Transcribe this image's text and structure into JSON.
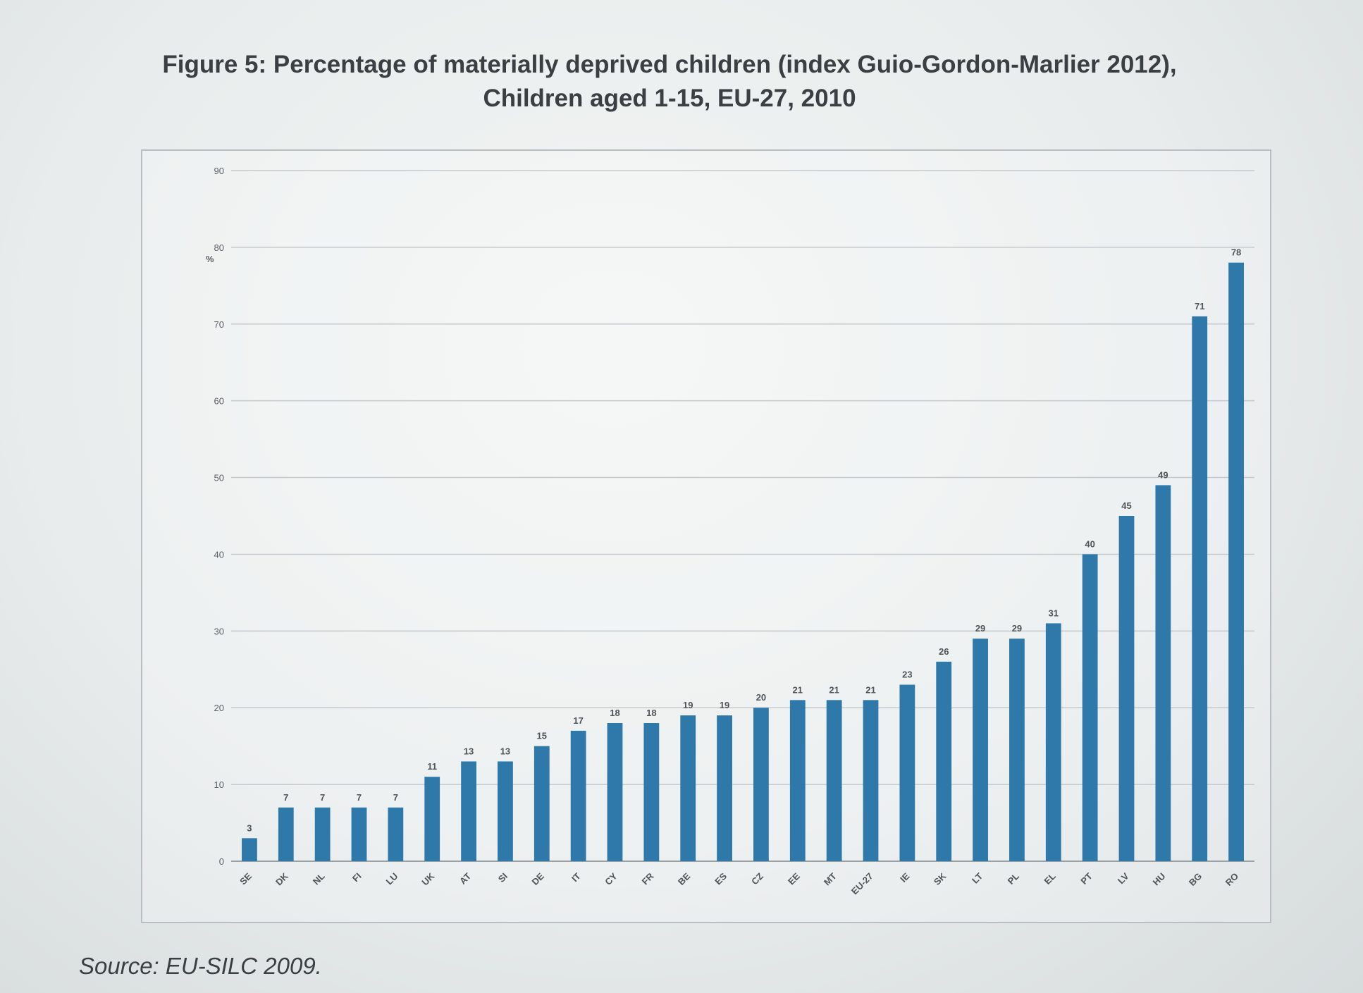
{
  "figure": {
    "title_line1": "Figure 5: Percentage of materially deprived children (index Guio-Gordon-Marlier 2012),",
    "title_line2": "Children aged 1-15, EU-27, 2010",
    "source": "Source: EU-SILC 2009."
  },
  "chart_data": {
    "type": "bar",
    "title": "Figure 5: Percentage of materially deprived children (index Guio-Gordon-Marlier 2012), Children aged 1-15, EU-27, 2010",
    "xlabel": "",
    "ylabel": "%",
    "ylim": [
      0,
      90
    ],
    "yticks": [
      0,
      10,
      20,
      30,
      40,
      50,
      60,
      70,
      80,
      90
    ],
    "grid": true,
    "bar_color": "#2e78aa",
    "categories": [
      "SE",
      "DK",
      "NL",
      "FI",
      "LU",
      "UK",
      "AT",
      "SI",
      "DE",
      "IT",
      "CY",
      "FR",
      "BE",
      "ES",
      "CZ",
      "EE",
      "MT",
      "EU-27",
      "IE",
      "SK",
      "LT",
      "PL",
      "EL",
      "PT",
      "LV",
      "HU",
      "BG",
      "RO"
    ],
    "values": [
      3,
      7,
      7,
      7,
      7,
      11,
      13,
      13,
      15,
      17,
      18,
      18,
      19,
      19,
      20,
      21,
      21,
      21,
      23,
      26,
      29,
      29,
      31,
      40,
      45,
      49,
      71,
      78
    ],
    "value_labels": [
      "3",
      "7",
      "7",
      "7",
      "7",
      "11",
      "13",
      "13",
      "15",
      "17",
      "18",
      "18",
      "19",
      "19",
      "20",
      "21",
      "21",
      "21",
      "23",
      "26",
      "29",
      "29",
      "31",
      "40",
      "45",
      "49",
      "71",
      "78"
    ]
  }
}
